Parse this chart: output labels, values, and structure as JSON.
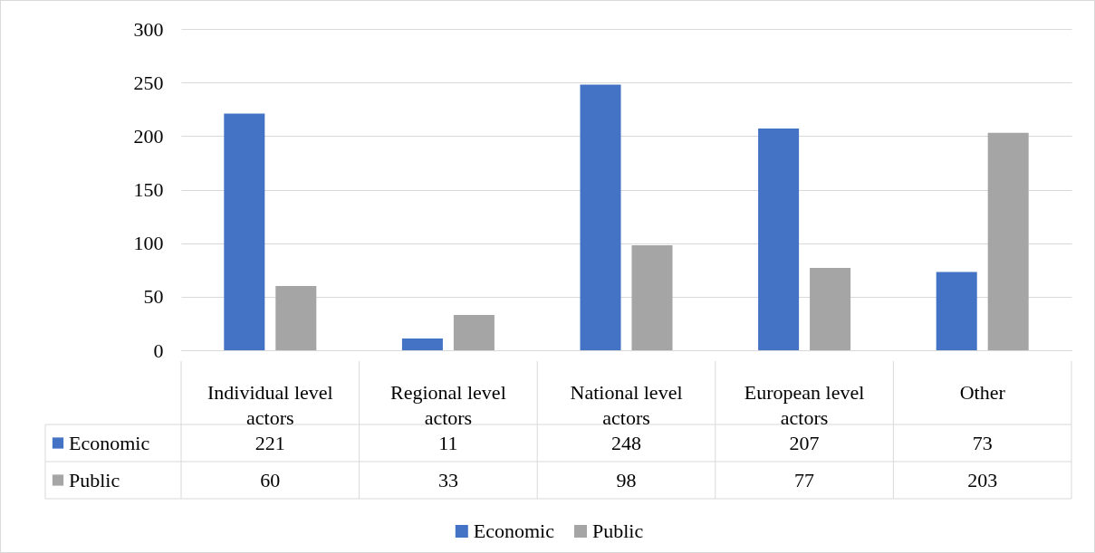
{
  "chart_data": {
    "type": "bar",
    "categories": [
      "Individual level actors",
      "Regional level actors",
      "National level actors",
      "European level actors",
      "Other"
    ],
    "series": [
      {
        "name": "Economic",
        "color": "#4472c4",
        "values": [
          221,
          11,
          248,
          207,
          73
        ]
      },
      {
        "name": "Public",
        "color": "#a5a5a5",
        "values": [
          60,
          33,
          98,
          77,
          203
        ]
      }
    ],
    "ylim": [
      0,
      300
    ],
    "yticks": [
      0,
      50,
      100,
      150,
      200,
      250,
      300
    ],
    "grid": "y",
    "legend": "bottom",
    "data_labels": true
  }
}
